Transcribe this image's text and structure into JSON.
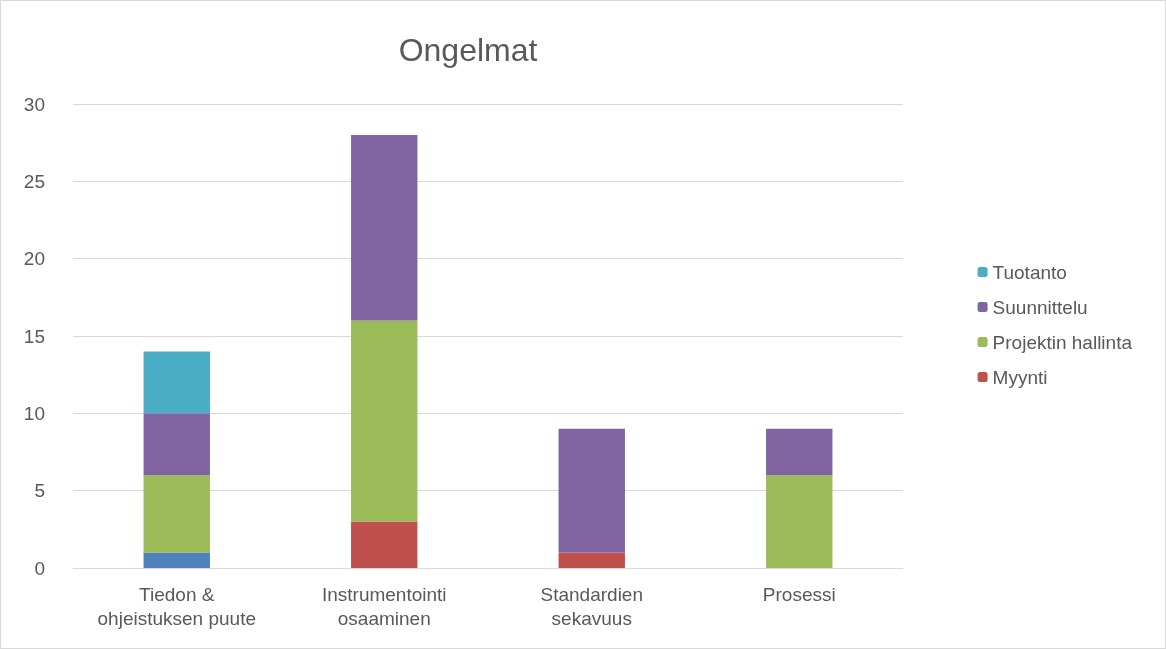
{
  "chart_data": {
    "type": "bar",
    "title": "Ongelmat",
    "stacked": true,
    "grid": "y",
    "legend": "right",
    "categories": [
      "Tiedon &\nohjeistuksen puute",
      "Instrumentointi\nosaaminen",
      "Standardien\nsekavuus",
      "Prosessi"
    ],
    "ylim": [
      0,
      30
    ],
    "yticks": [
      0,
      5,
      10,
      15,
      20,
      25,
      30
    ],
    "series": [
      {
        "color": "#4f81bd",
        "values": [
          1,
          null,
          null,
          null
        ]
      },
      {
        "name": "Myynti",
        "color": "#c0504d",
        "values": [
          null,
          3,
          1,
          null
        ]
      },
      {
        "name": "Projektin hallinta",
        "color": "#9bbb59",
        "values": [
          5,
          13,
          null,
          6
        ]
      },
      {
        "name": "Suunnittelu",
        "color": "#8064a2",
        "values": [
          4,
          12,
          8,
          3
        ]
      },
      {
        "name": "Tuotanto",
        "color": "#4bacc6",
        "values": [
          4,
          null,
          null,
          null
        ]
      }
    ]
  }
}
